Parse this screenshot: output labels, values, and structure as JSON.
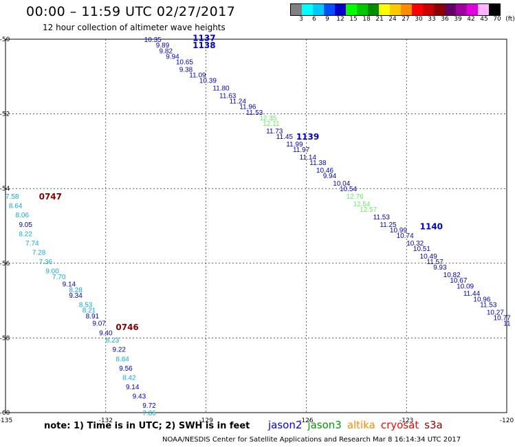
{
  "title": "00:00 – 11:59 UTC 02/27/2017",
  "subtitle": "12 hour collection of altimeter wave heights",
  "color_scale": {
    "colors": [
      "#808080",
      "#00ffff",
      "#00c8ff",
      "#0050ff",
      "#0000c8",
      "#00ff00",
      "#00c800",
      "#008c00",
      "#ffff00",
      "#ffc800",
      "#ff8c00",
      "#ff0000",
      "#c80000",
      "#8c0000",
      "#640064",
      "#a000a0",
      "#e000e0",
      "#ffb4ff",
      "#000000"
    ],
    "labels": [
      "3",
      "6",
      "9",
      "12",
      "15",
      "18",
      "21",
      "24",
      "27",
      "30",
      "33",
      "36",
      "39",
      "42",
      "45",
      "70"
    ],
    "unit": "(ft)"
  },
  "chart_data": {
    "type": "scatter",
    "xlim": [
      -135,
      -120
    ],
    "ylim": [
      -60,
      -50
    ],
    "x_ticks": [
      "-135",
      "-132",
      "-129",
      "-126",
      "-123",
      "-120"
    ],
    "y_ticks": [
      "-50",
      "-52",
      "-54",
      "-56",
      "-58",
      "-60"
    ],
    "track_times": [
      {
        "label": "1137",
        "lon": -129.4,
        "lat": -49.95,
        "color": "#0000c8"
      },
      {
        "label": "1138",
        "lon": -129.4,
        "lat": -50.15,
        "color": "#0000c8"
      },
      {
        "label": "1139",
        "lon": -126.3,
        "lat": -52.6,
        "color": "#0000c8"
      },
      {
        "label": "1140",
        "lon": -122.6,
        "lat": -55.0,
        "color": "#0000c8"
      },
      {
        "label": "0747",
        "lon": -134.0,
        "lat": -54.2,
        "color": "#8c0000"
      },
      {
        "label": "0746",
        "lon": -131.7,
        "lat": -57.7,
        "color": "#8c0000"
      }
    ],
    "series": [
      {
        "name": "jason2",
        "color": "#0000c8",
        "points": [
          {
            "lon": -130.85,
            "lat": -50.0,
            "value": "10.35"
          },
          {
            "lon": -130.5,
            "lat": -50.15,
            "value": "9.89"
          },
          {
            "lon": -130.4,
            "lat": -50.3,
            "value": "9.82"
          },
          {
            "lon": -130.2,
            "lat": -50.45,
            "value": "9.94"
          },
          {
            "lon": -129.9,
            "lat": -50.6,
            "value": "10.65"
          },
          {
            "lon": -129.8,
            "lat": -50.8,
            "value": "9.38"
          },
          {
            "lon": -129.5,
            "lat": -50.95,
            "value": "11.09"
          },
          {
            "lon": -129.2,
            "lat": -51.1,
            "value": "10.39"
          },
          {
            "lon": -128.8,
            "lat": -51.3,
            "value": "11.80"
          },
          {
            "lon": -128.6,
            "lat": -51.5,
            "value": "11.63"
          },
          {
            "lon": -128.3,
            "lat": -51.65,
            "value": "11.24"
          },
          {
            "lon": -128.0,
            "lat": -51.8,
            "value": "11.96"
          },
          {
            "lon": -127.8,
            "lat": -51.95,
            "value": "11.53"
          },
          {
            "lon": -127.2,
            "lat": -52.45,
            "value": "11.73"
          },
          {
            "lon": -126.9,
            "lat": -52.6,
            "value": "11.45"
          },
          {
            "lon": -126.6,
            "lat": -52.8,
            "value": "11.99"
          },
          {
            "lon": -126.4,
            "lat": -52.95,
            "value": "11.97"
          },
          {
            "lon": -126.2,
            "lat": -53.15,
            "value": "11.14"
          },
          {
            "lon": -125.9,
            "lat": -53.3,
            "value": "11.38"
          },
          {
            "lon": -125.7,
            "lat": -53.5,
            "value": "10.46"
          },
          {
            "lon": -125.5,
            "lat": -53.65,
            "value": "9.94"
          },
          {
            "lon": -125.2,
            "lat": -53.85,
            "value": "10.04"
          },
          {
            "lon": -125.0,
            "lat": -54.0,
            "value": "10.54"
          },
          {
            "lon": -124.0,
            "lat": -54.75,
            "value": "11.53"
          },
          {
            "lon": -123.8,
            "lat": -54.95,
            "value": "11.25"
          },
          {
            "lon": -123.5,
            "lat": -55.1,
            "value": "10.99"
          },
          {
            "lon": -123.3,
            "lat": -55.25,
            "value": "10.74"
          },
          {
            "lon": -123.0,
            "lat": -55.45,
            "value": "10.32"
          },
          {
            "lon": -122.8,
            "lat": -55.6,
            "value": "10.51"
          },
          {
            "lon": -122.6,
            "lat": -55.8,
            "value": "10.49"
          },
          {
            "lon": -122.4,
            "lat": -55.95,
            "value": "11.57"
          },
          {
            "lon": -122.2,
            "lat": -56.1,
            "value": "9.93"
          },
          {
            "lon": -121.9,
            "lat": -56.3,
            "value": "10.82"
          },
          {
            "lon": -121.7,
            "lat": -56.45,
            "value": "10.67"
          },
          {
            "lon": -121.5,
            "lat": -56.6,
            "value": "10.09"
          },
          {
            "lon": -121.3,
            "lat": -56.8,
            "value": "11.44"
          },
          {
            "lon": -121.0,
            "lat": -56.95,
            "value": "10.96"
          },
          {
            "lon": -120.8,
            "lat": -57.1,
            "value": "11.53"
          },
          {
            "lon": -120.6,
            "lat": -57.3,
            "value": "10.27"
          },
          {
            "lon": -120.4,
            "lat": -57.45,
            "value": "10.77"
          },
          {
            "lon": -120.1,
            "lat": -57.6,
            "value": "11"
          },
          {
            "lon": -134.6,
            "lat": -54.95,
            "value": "9.05"
          },
          {
            "lon": -133.3,
            "lat": -56.55,
            "value": "9.14"
          },
          {
            "lon": -133.1,
            "lat": -56.85,
            "value": "9.34"
          },
          {
            "lon": -132.6,
            "lat": -57.4,
            "value": "8.91"
          },
          {
            "lon": -132.4,
            "lat": -57.6,
            "value": "9.07"
          },
          {
            "lon": -132.2,
            "lat": -57.85,
            "value": "9.40"
          },
          {
            "lon": -131.8,
            "lat": -58.3,
            "value": "9.22"
          },
          {
            "lon": -131.6,
            "lat": -58.8,
            "value": "9.56"
          },
          {
            "lon": -131.4,
            "lat": -59.3,
            "value": "9.14"
          },
          {
            "lon": -131.2,
            "lat": -59.55,
            "value": "9.43"
          },
          {
            "lon": -130.9,
            "lat": -59.8,
            "value": "9.72"
          }
        ]
      },
      {
        "name": "jason3",
        "color": "#66ee66",
        "points": [
          {
            "lon": -127.4,
            "lat": -52.1,
            "value": "12.35"
          },
          {
            "lon": -127.3,
            "lat": -52.25,
            "value": "12.11"
          },
          {
            "lon": -124.8,
            "lat": -54.2,
            "value": "12.76"
          },
          {
            "lon": -124.6,
            "lat": -54.4,
            "value": "12.54"
          },
          {
            "lon": -124.4,
            "lat": -54.55,
            "value": "12.57"
          }
        ]
      },
      {
        "name": "cryosat",
        "color": "#11aadd",
        "points": [
          {
            "lon": -135.0,
            "lat": -54.2,
            "value": "7.58"
          },
          {
            "lon": -134.9,
            "lat": -54.45,
            "value": "8.64"
          },
          {
            "lon": -134.7,
            "lat": -54.7,
            "value": "8.06"
          },
          {
            "lon": -134.6,
            "lat": -55.2,
            "value": "8.22"
          },
          {
            "lon": -134.4,
            "lat": -55.45,
            "value": "7.74"
          },
          {
            "lon": -134.2,
            "lat": -55.7,
            "value": "7.28"
          },
          {
            "lon": -134.0,
            "lat": -55.95,
            "value": "7.36"
          },
          {
            "lon": -133.8,
            "lat": -56.2,
            "value": "9.00"
          },
          {
            "lon": -133.6,
            "lat": -56.35,
            "value": "7.70"
          },
          {
            "lon": -133.1,
            "lat": -56.7,
            "value": "8.28"
          },
          {
            "lon": -132.8,
            "lat": -57.1,
            "value": "8.53"
          },
          {
            "lon": -132.7,
            "lat": -57.25,
            "value": "8.21"
          },
          {
            "lon": -132.0,
            "lat": -58.05,
            "value": "8.23"
          },
          {
            "lon": -131.7,
            "lat": -58.55,
            "value": "8.84"
          },
          {
            "lon": -131.5,
            "lat": -59.05,
            "value": "8.42"
          },
          {
            "lon": -130.9,
            "lat": -60.0,
            "value": "7.86"
          }
        ]
      }
    ]
  },
  "note": "note:  1) Time is in UTC;  2) SWH is in feet",
  "legend": [
    {
      "name": "jason2",
      "color": "#0000ff"
    },
    {
      "name": "jason3",
      "color": "#009900"
    },
    {
      "name": "altika",
      "color": "#ff8c00"
    },
    {
      "name": "cryosat",
      "color": "#ff0000"
    },
    {
      "name": "s3a",
      "color": "#990000"
    }
  ],
  "credit": "NOAA/NESDIS Center for Satellite Applications and Research     Mar  8 16:14:34 UTC 2017"
}
